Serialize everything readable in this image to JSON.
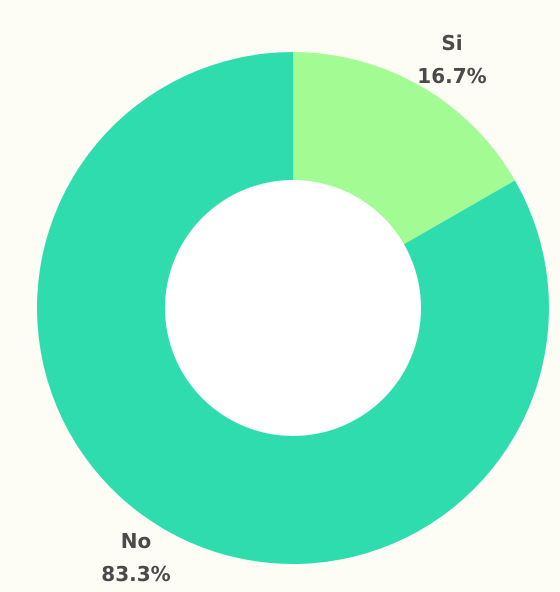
{
  "chart_data": {
    "type": "pie",
    "variant": "donut",
    "title": "",
    "slices": [
      {
        "name": "Si",
        "value": 16.7,
        "label": "16.7%",
        "color": "#a3fb94"
      },
      {
        "name": "No",
        "value": 83.3,
        "label": "83.3%",
        "color": "#2fdcae"
      }
    ],
    "start_angle": "12 o'clock",
    "direction": "clockwise",
    "legend": "none",
    "labels": "outside"
  },
  "colors": {
    "background": "#fdfdf6",
    "hole": "#ffffff",
    "label_text": "#4a4a4a"
  }
}
